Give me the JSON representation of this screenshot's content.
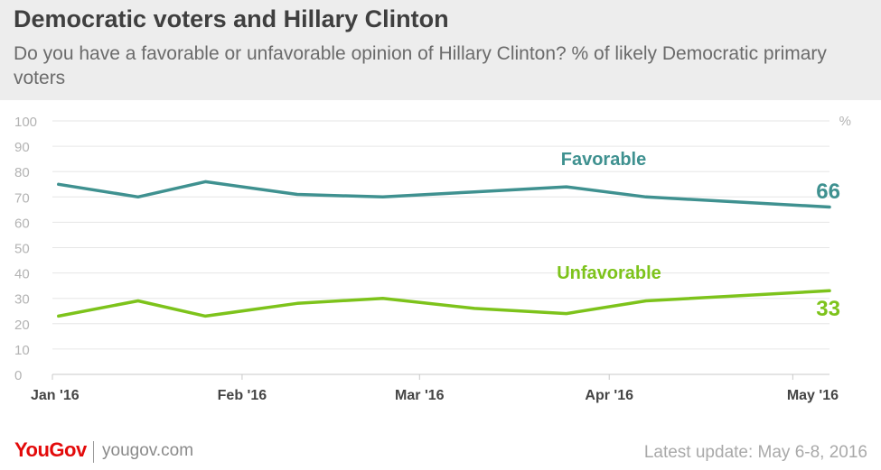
{
  "header": {
    "title": "Democratic voters and Hillary Clinton",
    "subtitle": "Do you have a favorable or unfavorable opinion of Hillary Clinton? % of likely Democratic primary voters"
  },
  "chart_data": {
    "type": "line",
    "unit_label": "%",
    "ylim": [
      0,
      100
    ],
    "yticks": [
      0,
      10,
      20,
      30,
      40,
      50,
      60,
      70,
      80,
      90,
      100
    ],
    "xlim": [
      "2016-01-01",
      "2016-05-07"
    ],
    "xticks": [
      {
        "date": "2016-01-01",
        "label": "Jan '16"
      },
      {
        "date": "2016-02-01",
        "label": "Feb '16"
      },
      {
        "date": "2016-03-01",
        "label": "Mar '16"
      },
      {
        "date": "2016-04-01",
        "label": "Apr '16"
      },
      {
        "date": "2016-05-01",
        "label": "May '16"
      }
    ],
    "x": [
      "2016-01-02",
      "2016-01-15",
      "2016-01-26",
      "2016-02-10",
      "2016-02-24",
      "2016-03-10",
      "2016-03-25",
      "2016-04-07",
      "2016-05-07"
    ],
    "grid": true,
    "series": [
      {
        "name": "Favorable",
        "color": "#3f9190",
        "values": [
          75,
          70,
          76,
          71,
          70,
          72,
          74,
          70,
          66
        ],
        "end_label": "66"
      },
      {
        "name": "Unfavorable",
        "color": "#7dc31b",
        "values": [
          23,
          29,
          23,
          28,
          30,
          26,
          24,
          29,
          33
        ],
        "end_label": "33"
      }
    ]
  },
  "footer": {
    "brand": "YouGov",
    "site": "yougov.com",
    "update": "Latest update: May 6-8, 2016"
  }
}
